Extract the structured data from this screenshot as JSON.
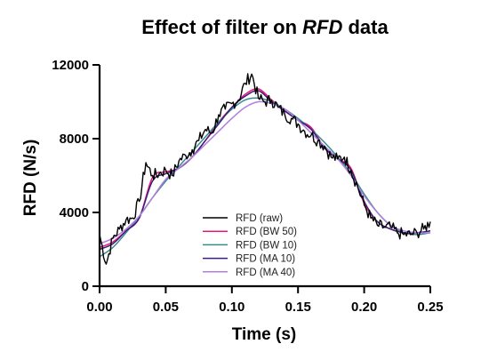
{
  "chart_data": {
    "type": "line",
    "title": {
      "prefix": "Effect of filter on ",
      "emphasis": "RFD",
      "suffix": " data"
    },
    "xlabel": "Time (s)",
    "ylabel": "RFD (N/s)",
    "xlim": [
      0,
      0.25
    ],
    "ylim": [
      0,
      12000
    ],
    "x_ticks": [
      0.0,
      0.05,
      0.1,
      0.15,
      0.2,
      0.25
    ],
    "x_tick_labels": [
      "0.00",
      "0.05",
      "0.10",
      "0.15",
      "0.20",
      "0.25"
    ],
    "y_ticks": [
      0,
      4000,
      8000,
      12000
    ],
    "y_tick_labels": [
      "0",
      "4000",
      "8000",
      "12000"
    ],
    "grid": false,
    "legend_position": "center-bottom",
    "series": [
      {
        "name": "RFD (raw)",
        "color": "#000000",
        "style": "noisy",
        "x": [
          0,
          0.005,
          0.01,
          0.015,
          0.02,
          0.025,
          0.03,
          0.035,
          0.04,
          0.045,
          0.05,
          0.055,
          0.06,
          0.065,
          0.07,
          0.075,
          0.08,
          0.085,
          0.09,
          0.095,
          0.1,
          0.105,
          0.11,
          0.115,
          0.12,
          0.125,
          0.13,
          0.135,
          0.14,
          0.145,
          0.15,
          0.155,
          0.16,
          0.165,
          0.17,
          0.175,
          0.18,
          0.185,
          0.19,
          0.195,
          0.2,
          0.205,
          0.21,
          0.215,
          0.22,
          0.225,
          0.23,
          0.235,
          0.24,
          0.245,
          0.25
        ],
        "y": [
          2800,
          1200,
          2600,
          3100,
          3600,
          3700,
          4600,
          6700,
          6000,
          6100,
          6300,
          6000,
          6800,
          7100,
          7400,
          7900,
          8500,
          8300,
          9300,
          9600,
          9900,
          10100,
          11000,
          11500,
          10200,
          10000,
          10100,
          9700,
          9300,
          9100,
          8800,
          8400,
          8200,
          7900,
          7600,
          7000,
          6900,
          7000,
          6300,
          5400,
          4400,
          3700,
          3300,
          3200,
          3200,
          2900,
          2800,
          2800,
          2900,
          3100,
          3500
        ]
      },
      {
        "name": "RFD (BW 50)",
        "color": "#e8187a",
        "style": "smooth",
        "x": [
          0,
          0.01,
          0.02,
          0.03,
          0.04,
          0.05,
          0.06,
          0.07,
          0.08,
          0.09,
          0.1,
          0.11,
          0.12,
          0.13,
          0.14,
          0.15,
          0.16,
          0.17,
          0.18,
          0.19,
          0.2,
          0.21,
          0.22,
          0.23,
          0.24,
          0.25
        ],
        "y": [
          2100,
          2400,
          3000,
          3700,
          5900,
          6200,
          6400,
          7000,
          7900,
          8900,
          9700,
          10400,
          10700,
          10100,
          9500,
          9000,
          8600,
          7500,
          6900,
          6400,
          4500,
          3500,
          3100,
          2900,
          2900,
          3000
        ]
      },
      {
        "name": "RFD (BW 10)",
        "color": "#3a8c8c",
        "style": "smooth",
        "x": [
          0,
          0.01,
          0.02,
          0.03,
          0.04,
          0.05,
          0.06,
          0.07,
          0.08,
          0.09,
          0.1,
          0.11,
          0.12,
          0.13,
          0.14,
          0.15,
          0.16,
          0.17,
          0.18,
          0.19,
          0.2,
          0.21,
          0.22,
          0.23,
          0.24,
          0.25
        ],
        "y": [
          1600,
          2100,
          2900,
          3800,
          4800,
          5700,
          6500,
          7300,
          8100,
          8900,
          9600,
          10100,
          10200,
          10000,
          9600,
          9100,
          8500,
          7800,
          7000,
          6100,
          5000,
          4000,
          3300,
          2900,
          2800,
          2900
        ]
      },
      {
        "name": "RFD (MA 10)",
        "color": "#3a1f7a",
        "style": "smooth",
        "x": [
          0,
          0.01,
          0.02,
          0.03,
          0.04,
          0.05,
          0.06,
          0.07,
          0.08,
          0.09,
          0.1,
          0.11,
          0.12,
          0.13,
          0.14,
          0.15,
          0.16,
          0.17,
          0.18,
          0.19,
          0.2,
          0.21,
          0.22,
          0.23,
          0.24,
          0.25
        ],
        "y": [
          2000,
          2300,
          3000,
          3700,
          5700,
          6100,
          6400,
          7000,
          7900,
          8800,
          9700,
          10300,
          10600,
          10000,
          9500,
          9000,
          8500,
          7500,
          6900,
          6300,
          4600,
          3500,
          3100,
          2900,
          2900,
          3000
        ]
      },
      {
        "name": "RFD (MA 40)",
        "color": "#b07fe0",
        "style": "smooth",
        "x": [
          0,
          0.01,
          0.02,
          0.03,
          0.04,
          0.05,
          0.06,
          0.07,
          0.08,
          0.09,
          0.1,
          0.11,
          0.12,
          0.13,
          0.14,
          0.15,
          0.16,
          0.17,
          0.18,
          0.19,
          0.2,
          0.21,
          0.22,
          0.23,
          0.24,
          0.25
        ],
        "y": [
          2300,
          2600,
          3100,
          3800,
          4800,
          5800,
          6400,
          7000,
          7700,
          8400,
          9100,
          9700,
          10000,
          9900,
          9600,
          9000,
          8300,
          7600,
          6900,
          6000,
          4900,
          4000,
          3300,
          3000,
          2900,
          2900
        ]
      }
    ]
  }
}
